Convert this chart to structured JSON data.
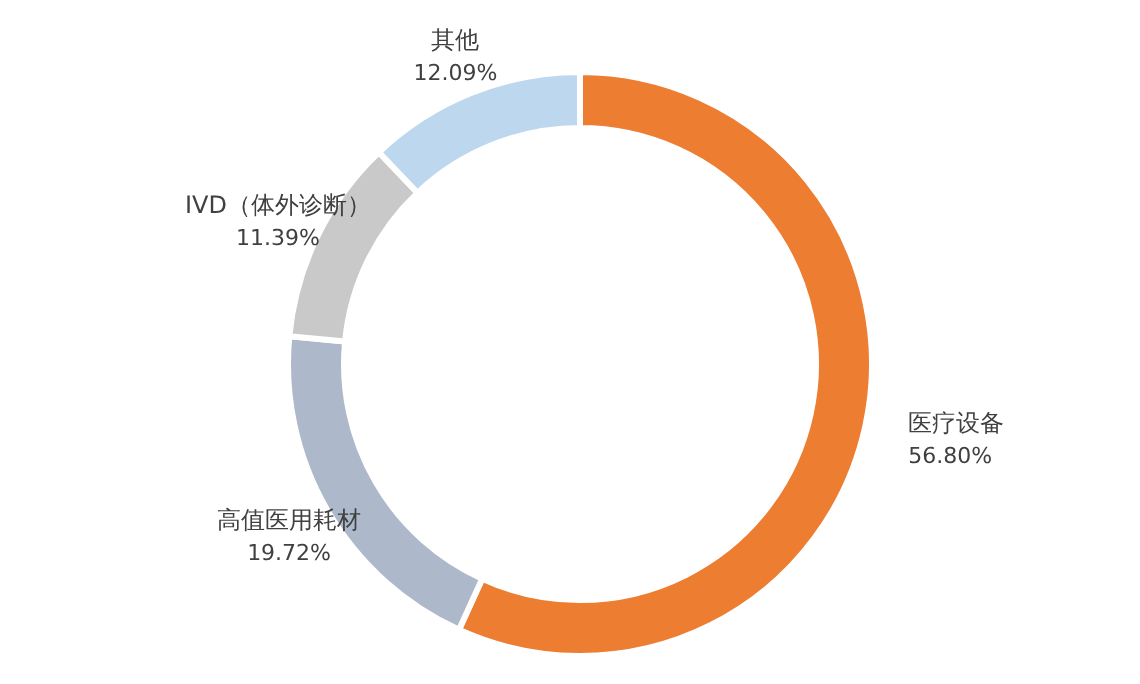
{
  "chart_data": {
    "type": "donut",
    "categories": [
      "医疗设备",
      "高值医用耗材",
      "IVD（体外诊断）",
      "其他"
    ],
    "values": [
      56.8,
      19.72,
      11.39,
      12.09
    ],
    "colors": [
      "#ed7d31",
      "#adb9ca",
      "#c9c9c9",
      "#bdd7ee"
    ],
    "value_labels": [
      "56.80%",
      "19.72%",
      "11.39%",
      "12.09%"
    ]
  }
}
